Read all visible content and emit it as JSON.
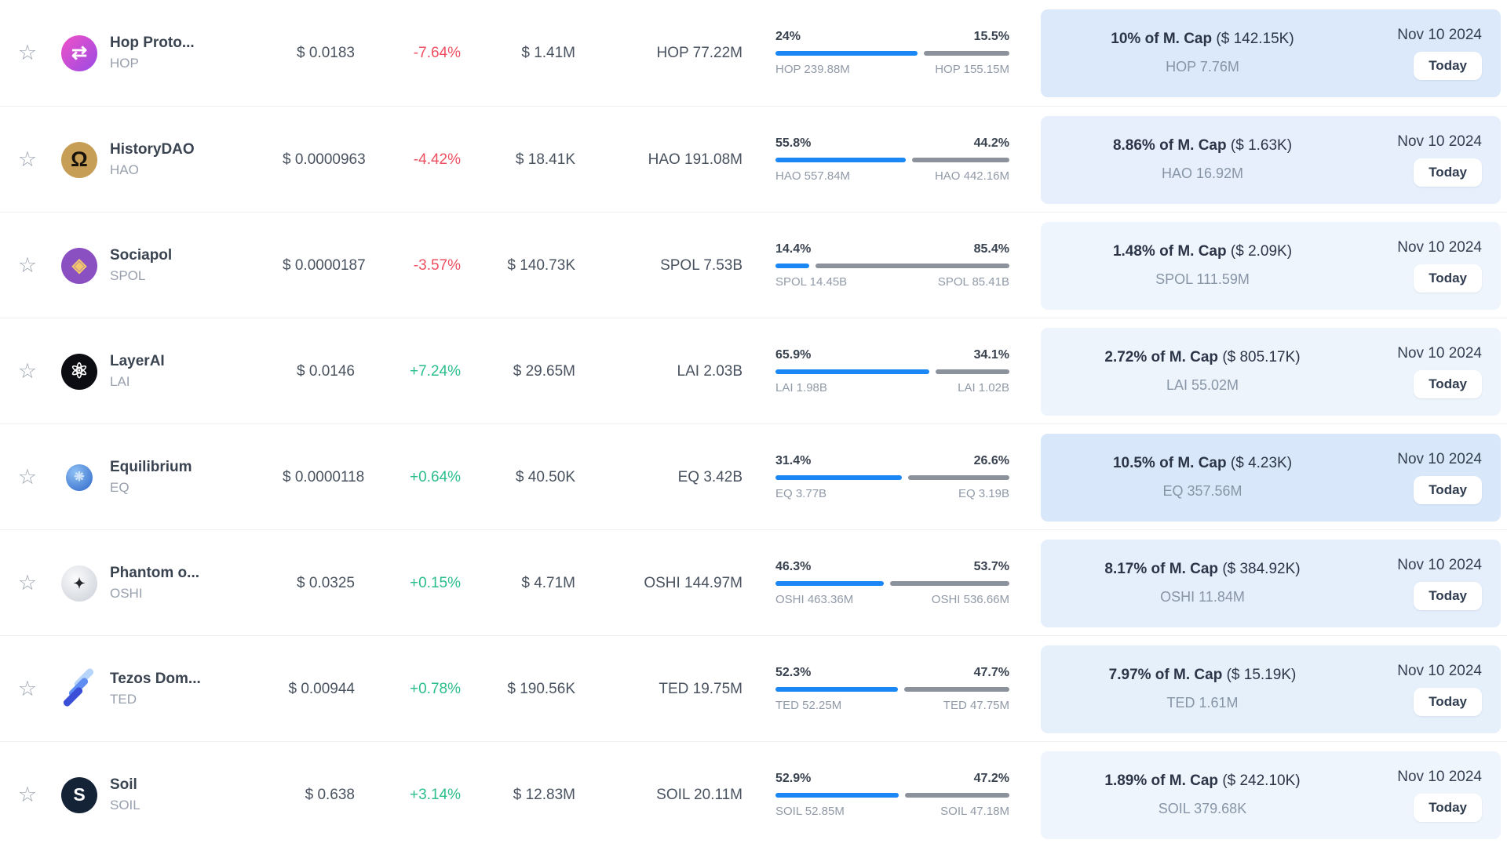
{
  "date_label": "Nov 10 2024",
  "today_label": "Today",
  "colors": {
    "bar_unlocked": "#1b87f5",
    "bar_locked": "#8b929c",
    "change_up": "#2bbe8a",
    "change_down": "#ee4f60"
  },
  "rows": [
    {
      "name": "Hop Proto...",
      "symbol": "HOP",
      "price": "$ 0.0183",
      "change": "-7.64%",
      "change_dir": "down",
      "value": "$ 1.41M",
      "amount": "HOP 77.22M",
      "bar": {
        "left_pct": "24%",
        "right_pct": "15.5%",
        "left_label": "HOP 239.88M",
        "right_label": "HOP 155.15M",
        "fill_pct": 60.8
      },
      "panel": {
        "cap_bold": "10% of M. Cap",
        "cap_paren": "($ 142.15K)",
        "amount": "HOP 7.76M",
        "tint": "#dbe9fa"
      },
      "logo": {
        "icon": "hop-protocol-logo",
        "shape": "circle",
        "size": 46,
        "bg": "linear-gradient(135deg,#f051c8,#9a4be4)",
        "glyph": "⇄",
        "glyph_color": "#ffffff",
        "glyph_size": 24
      }
    },
    {
      "name": "HistoryDAO",
      "symbol": "HAO",
      "price": "$ 0.0000963",
      "change": "-4.42%",
      "change_dir": "down",
      "value": "$ 18.41K",
      "amount": "HAO 191.08M",
      "bar": {
        "left_pct": "55.8%",
        "right_pct": "44.2%",
        "left_label": "HAO 557.84M",
        "right_label": "HAO 442.16M",
        "fill_pct": 55.8
      },
      "panel": {
        "cap_bold": "8.86% of M. Cap",
        "cap_paren": "($ 1.63K)",
        "amount": "HAO 16.92M",
        "tint": "#e6effb"
      },
      "logo": {
        "icon": "historydao-logo",
        "shape": "circle",
        "size": 46,
        "bg": "#c79e55",
        "glyph": "Ω",
        "glyph_color": "#17120c",
        "glyph_size": 27
      }
    },
    {
      "name": "Sociapol",
      "symbol": "SPOL",
      "price": "$ 0.0000187",
      "change": "-3.57%",
      "change_dir": "down",
      "value": "$ 140.73K",
      "amount": "SPOL 7.53B",
      "bar": {
        "left_pct": "14.4%",
        "right_pct": "85.4%",
        "left_label": "SPOL 14.45B",
        "right_label": "SPOL 85.41B",
        "fill_pct": 14.4
      },
      "panel": {
        "cap_bold": "1.48% of M. Cap",
        "cap_paren": "($ 2.09K)",
        "amount": "SPOL 111.59M",
        "tint": "#eff5fc"
      },
      "logo": {
        "icon": "sociapol-logo",
        "shape": "circle",
        "size": 46,
        "bg": "#8a4fc0",
        "glyph": "◈",
        "glyph_color": "#f2c66d",
        "glyph_size": 24
      }
    },
    {
      "name": "LayerAI",
      "symbol": "LAI",
      "price": "$ 0.0146",
      "change": "+7.24%",
      "change_dir": "up",
      "value": "$ 29.65M",
      "amount": "LAI 2.03B",
      "bar": {
        "left_pct": "65.9%",
        "right_pct": "34.1%",
        "left_label": "LAI 1.98B",
        "right_label": "LAI 1.02B",
        "fill_pct": 65.9
      },
      "panel": {
        "cap_bold": "2.72% of M. Cap",
        "cap_paren": "($ 805.17K)",
        "amount": "LAI 55.02M",
        "tint": "#edf4fc"
      },
      "logo": {
        "icon": "layerai-logo",
        "shape": "circle",
        "size": 46,
        "bg": "#0c0d12",
        "glyph": "⚛",
        "glyph_color": "#ffffff",
        "glyph_size": 27
      }
    },
    {
      "name": "Equilibrium",
      "symbol": "EQ",
      "price": "$ 0.0000118",
      "change": "+0.64%",
      "change_dir": "up",
      "value": "$ 40.50K",
      "amount": "EQ 3.42B",
      "bar": {
        "left_pct": "31.4%",
        "right_pct": "26.6%",
        "left_label": "EQ 3.77B",
        "right_label": "EQ 3.19B",
        "fill_pct": 54.1
      },
      "panel": {
        "cap_bold": "10.5% of M. Cap",
        "cap_paren": "($ 4.23K)",
        "amount": "EQ 357.56M",
        "tint": "#d8e7f9"
      },
      "logo": {
        "icon": "equilibrium-logo",
        "shape": "circle",
        "size": 34,
        "bg": "radial-gradient(circle at 35% 30%,#8fc1f5,#2c66c8)",
        "glyph": "❋",
        "glyph_color": "#cfe4fa",
        "glyph_size": 16
      }
    },
    {
      "name": "Phantom o...",
      "symbol": "OSHI",
      "price": "$ 0.0325",
      "change": "+0.15%",
      "change_dir": "up",
      "value": "$ 4.71M",
      "amount": "OSHI 144.97M",
      "bar": {
        "left_pct": "46.3%",
        "right_pct": "53.7%",
        "left_label": "OSHI 463.36M",
        "right_label": "OSHI 536.66M",
        "fill_pct": 46.3
      },
      "panel": {
        "cap_bold": "8.17% of M. Cap",
        "cap_paren": "($ 384.92K)",
        "amount": "OSHI 11.84M",
        "tint": "#e5eefb"
      },
      "logo": {
        "icon": "phantom-oshi-logo",
        "shape": "circle",
        "size": 46,
        "bg": "radial-gradient(circle at 40% 35%,#fbfbfc,#c9ced6)",
        "glyph": "✦",
        "glyph_color": "#23262b",
        "glyph_size": 18
      }
    },
    {
      "name": "Tezos Dom...",
      "symbol": "TED",
      "price": "$ 0.00944",
      "change": "+0.78%",
      "change_dir": "up",
      "value": "$ 190.56K",
      "amount": "TED 19.75M",
      "bar": {
        "left_pct": "52.3%",
        "right_pct": "47.7%",
        "left_label": "TED 52.25M",
        "right_label": "TED 47.75M",
        "fill_pct": 52.3
      },
      "panel": {
        "cap_bold": "7.97% of M. Cap",
        "cap_paren": "($ 15.19K)",
        "amount": "TED 1.61M",
        "tint": "#e6f0fb"
      },
      "logo": {
        "icon": "tezos-domains-logo",
        "shape": "stripes",
        "size": 46,
        "stripes": [
          "#b7d4fa",
          "#5f8df2",
          "#3a4ed8"
        ]
      }
    },
    {
      "name": "Soil",
      "symbol": "SOIL",
      "price": "$ 0.638",
      "change": "+3.14%",
      "change_dir": "up",
      "value": "$ 12.83M",
      "amount": "SOIL 20.11M",
      "bar": {
        "left_pct": "52.9%",
        "right_pct": "47.2%",
        "left_label": "SOIL 52.85M",
        "right_label": "SOIL 47.18M",
        "fill_pct": 52.8
      },
      "panel": {
        "cap_bold": "1.89% of M. Cap",
        "cap_paren": "($ 242.10K)",
        "amount": "SOIL 379.68K",
        "tint": "#eff5fc"
      },
      "logo": {
        "icon": "soil-logo",
        "shape": "circle",
        "size": 46,
        "bg": "#152337",
        "glyph": "S",
        "glyph_color": "#ffffff",
        "glyph_size": 23
      }
    }
  ]
}
